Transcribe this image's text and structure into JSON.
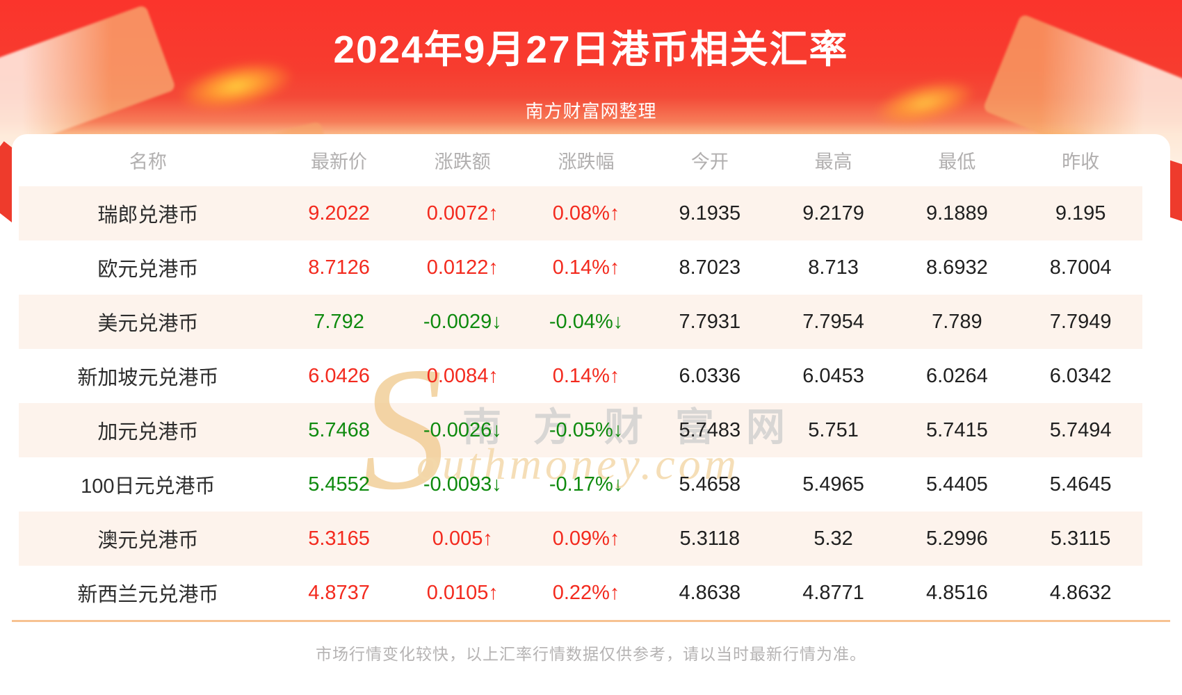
{
  "header": {
    "title": "2024年9月27日港币相关汇率",
    "subtitle": "南方财富网整理"
  },
  "table": {
    "columns": [
      "名称",
      "最新价",
      "涨跌额",
      "涨跌幅",
      "今开",
      "最高",
      "最低",
      "昨收"
    ],
    "rows": [
      {
        "name": "瑞郎兑港币",
        "latest": "9.2022",
        "change": "0.0072↑",
        "change_pct": "0.08%↑",
        "open": "9.1935",
        "high": "9.2179",
        "low": "9.1889",
        "prev_close": "9.195",
        "direction": "up"
      },
      {
        "name": "欧元兑港币",
        "latest": "8.7126",
        "change": "0.0122↑",
        "change_pct": "0.14%↑",
        "open": "8.7023",
        "high": "8.713",
        "low": "8.6932",
        "prev_close": "8.7004",
        "direction": "up"
      },
      {
        "name": "美元兑港币",
        "latest": "7.792",
        "change": "-0.0029↓",
        "change_pct": "-0.04%↓",
        "open": "7.7931",
        "high": "7.7954",
        "low": "7.789",
        "prev_close": "7.7949",
        "direction": "down"
      },
      {
        "name": "新加坡元兑港币",
        "latest": "6.0426",
        "change": "0.0084↑",
        "change_pct": "0.14%↑",
        "open": "6.0336",
        "high": "6.0453",
        "low": "6.0264",
        "prev_close": "6.0342",
        "direction": "up"
      },
      {
        "name": "加元兑港币",
        "latest": "5.7468",
        "change": "-0.0026↓",
        "change_pct": "-0.05%↓",
        "open": "5.7483",
        "high": "5.751",
        "low": "5.7415",
        "prev_close": "5.7494",
        "direction": "down"
      },
      {
        "name": "100日元兑港币",
        "latest": "5.4552",
        "change": "-0.0093↓",
        "change_pct": "-0.17%↓",
        "open": "5.4658",
        "high": "5.4965",
        "low": "5.4405",
        "prev_close": "5.4645",
        "direction": "down"
      },
      {
        "name": "澳元兑港币",
        "latest": "5.3165",
        "change": "0.005↑",
        "change_pct": "0.09%↑",
        "open": "5.3118",
        "high": "5.32",
        "low": "5.2996",
        "prev_close": "5.3115",
        "direction": "up"
      },
      {
        "name": "新西兰元兑港币",
        "latest": "4.8737",
        "change": "0.0105↑",
        "change_pct": "0.22%↑",
        "open": "4.8638",
        "high": "4.8771",
        "low": "4.8516",
        "prev_close": "4.8632",
        "direction": "up"
      }
    ]
  },
  "watermark": {
    "s": "S",
    "cn": "南方财富网",
    "en": "outhmoney.com"
  },
  "footer": {
    "disclaimer": "市场行情变化较快，以上汇率行情数据仅供参考，请以当时最新行情为准。"
  },
  "colors": {
    "up": "#f32a1e",
    "down": "#0e8a0e",
    "header_red": "#fb342c",
    "row_stripe": "#fdf3ec",
    "divider": "#f7c291"
  }
}
